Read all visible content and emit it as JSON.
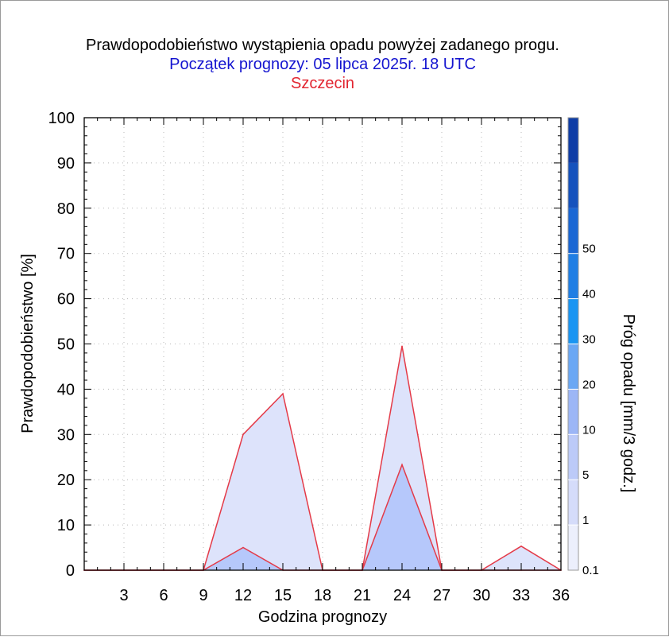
{
  "chart_data": {
    "type": "area",
    "title": "Prawdopodobieństwo wystąpienia opadu powyżej zadanego progu.",
    "subtitle": "Początek prognozy: 05 lipca 2025r. 18 UTC",
    "location": "Szczecin",
    "xlabel": "Godzina prognozy",
    "ylabel": "Prawdopodobieństwo [%]",
    "colorbar_label": "Próg opadu [mm/3 godz.]",
    "xlim": [
      0,
      36
    ],
    "ylim": [
      0,
      100
    ],
    "x_ticks": [
      3,
      6,
      9,
      12,
      15,
      18,
      21,
      24,
      27,
      30,
      33,
      36
    ],
    "y_ticks": [
      0,
      10,
      20,
      30,
      40,
      50,
      60,
      70,
      80,
      90,
      100
    ],
    "grid": true,
    "x": [
      0,
      3,
      6,
      9,
      12,
      15,
      18,
      21,
      24,
      27,
      30,
      33,
      36
    ],
    "series": [
      {
        "name": "0.1",
        "color": "#dde3fb",
        "values": [
          0,
          0,
          0,
          0,
          30,
          39,
          0,
          0,
          49.5,
          0,
          0,
          5.3,
          0
        ]
      },
      {
        "name": "1",
        "color": "#b6c8fb",
        "values": [
          0,
          0,
          0,
          0,
          5,
          0,
          0,
          0,
          23.3,
          0,
          0,
          0,
          0
        ]
      }
    ],
    "colorbar": {
      "levels": [
        "0.1",
        "1",
        "5",
        "10",
        "20",
        "30",
        "40",
        "50"
      ],
      "colors": [
        "#eceffc",
        "#d5dcfa",
        "#bccaf8",
        "#9cb6f6",
        "#6aa7f4",
        "#1a95f2",
        "#1f7ee4",
        "#1a67d4",
        "#1552bd",
        "#0f3da6"
      ]
    },
    "line_color": "#e43a48"
  }
}
